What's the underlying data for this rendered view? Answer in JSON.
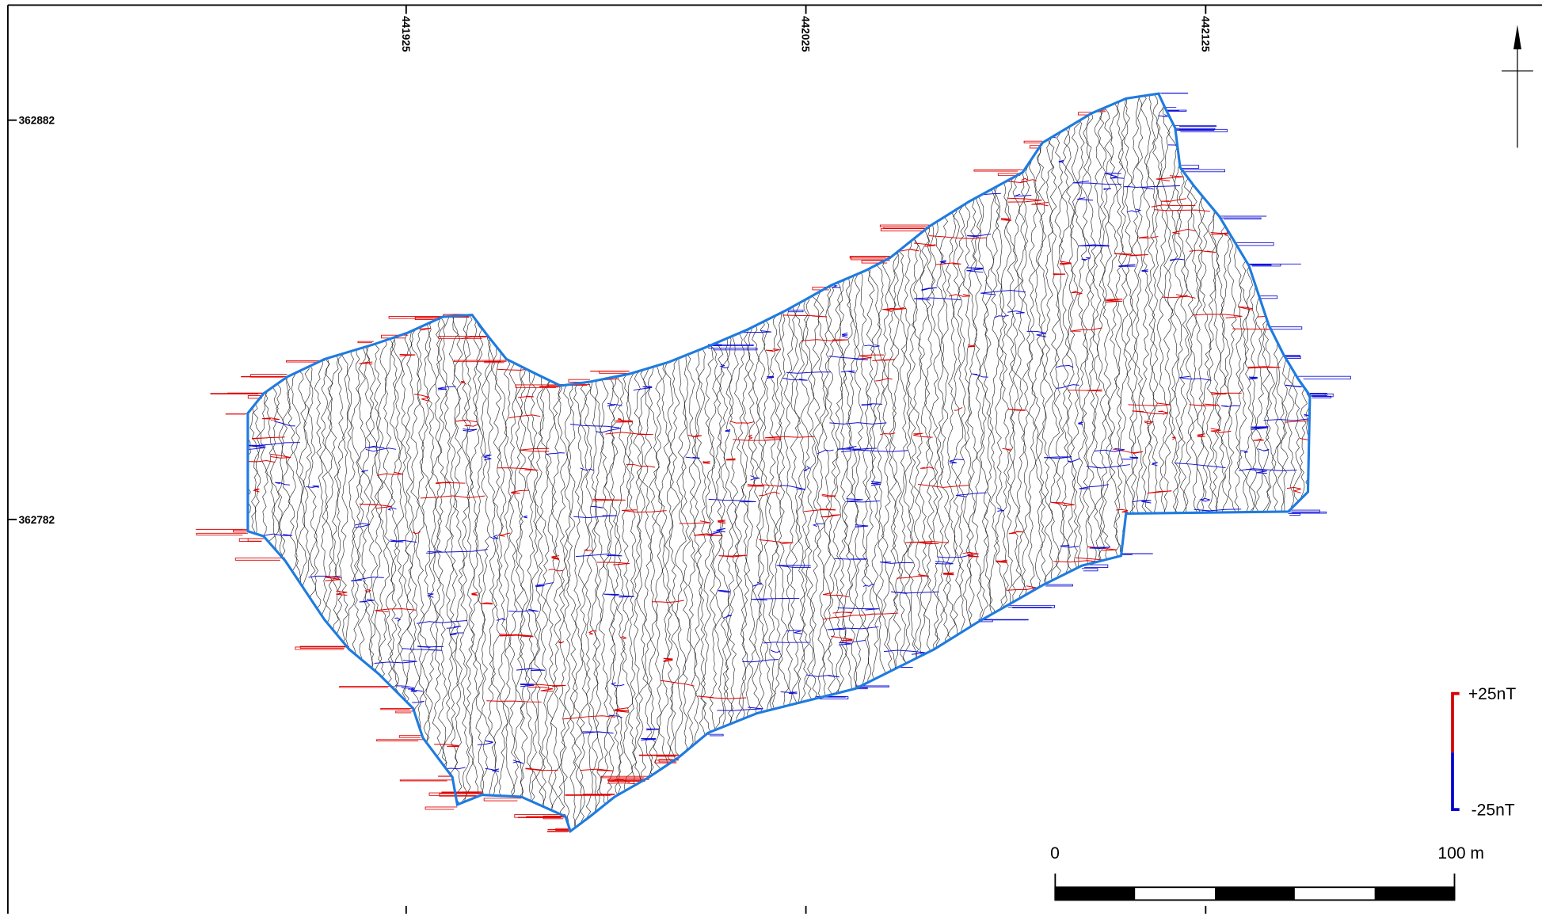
{
  "map": {
    "x_grid_labels": [
      441925,
      442025,
      442125
    ],
    "y_grid_labels": [
      362882,
      362782
    ],
    "legend": {
      "max_label": "+25nT",
      "min_label": "-25nT"
    },
    "scale_bar": {
      "start_label": "0",
      "end_label": "100 m"
    }
  }
}
